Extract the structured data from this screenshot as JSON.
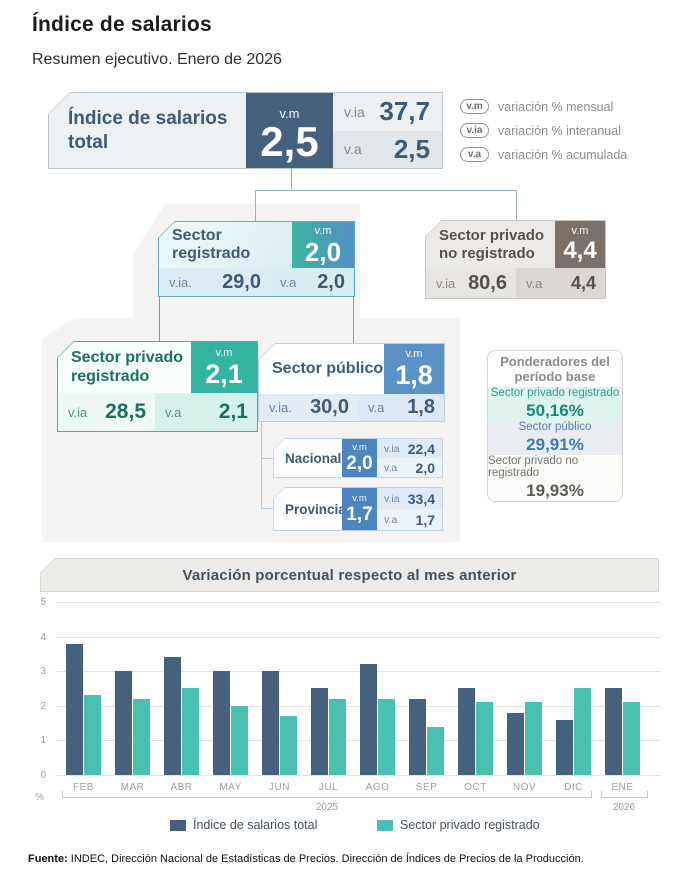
{
  "page": {
    "title": "Índice de salarios",
    "subtitle": "Resumen ejecutivo. Enero de 2026",
    "footer_label": "Fuente:",
    "footer_text": " INDEC, Dirección Nacional de Estadísticas de Precios. Dirección de Índices de Precios de la Producción."
  },
  "abbrev_legend": {
    "items": [
      {
        "badge": "v.m",
        "label": "variación % mensual"
      },
      {
        "badge": "v.ia",
        "label": "variación % interanual"
      },
      {
        "badge": "v.a",
        "label": "variación % acumulada"
      }
    ]
  },
  "total_box": {
    "title": "Índice de salarios total",
    "vm_label": "v.m",
    "vm": "2,5",
    "via_label": "v.ia",
    "via": "37,7",
    "va_label": "v.a",
    "va": "2,5"
  },
  "sector_registrado": {
    "title": "Sector registrado",
    "vm_label": "v.m",
    "vm": "2,0",
    "via_label": "v.ia.",
    "via": "29,0",
    "va_label": "v.a",
    "va": "2,0"
  },
  "sector_privado_no_registrado": {
    "title": "Sector privado no registrado",
    "vm_label": "v.m",
    "vm": "4,4",
    "via_label": "v.ia",
    "via": "80,6",
    "va_label": "v.a",
    "va": "4,4"
  },
  "sector_privado_registrado": {
    "title": "Sector privado registrado",
    "vm_label": "v.m",
    "vm": "2,1",
    "via_label": "v.ia",
    "via": "28,5",
    "va_label": "v.a",
    "va": "2,1"
  },
  "sector_publico": {
    "title": "Sector público",
    "vm_label": "v.m",
    "vm": "1,8",
    "via_label": "v.ia.",
    "via": "30,0",
    "va_label": "v.a",
    "va": "1,8",
    "children": [
      {
        "title": "Nacional",
        "vm_label": "v.m",
        "vm": "2,0",
        "via_label": "v.ia",
        "via": "22,4",
        "va_label": "v.a",
        "va": "2,0"
      },
      {
        "title": "Provincial",
        "vm_label": "v.m",
        "vm": "1,7",
        "via_label": "v.ia",
        "via": "33,4",
        "va_label": "v.a",
        "va": "1,7"
      }
    ]
  },
  "ponderadores": {
    "title": "Ponderadores del período base",
    "rows": [
      {
        "label": "Sector privado registrado",
        "value": "50,16%"
      },
      {
        "label": "Sector público",
        "value": "29,91%"
      },
      {
        "label": "Sector privado no registrado",
        "value": "19,93%"
      }
    ]
  },
  "chart_data": {
    "type": "bar",
    "title": "Variación porcentual respecto al mes anterior",
    "categories": [
      "FEB",
      "MAR",
      "ABR",
      "MAY",
      "JUN",
      "JUL",
      "AGO",
      "SEP",
      "OCT",
      "NOV",
      "DIC",
      "ENE"
    ],
    "series": [
      {
        "name": "Índice de salarios total",
        "color": "#46617d",
        "values": [
          3.8,
          3.0,
          3.4,
          3.0,
          3.0,
          2.5,
          3.2,
          2.2,
          2.5,
          1.8,
          1.6,
          2.5
        ]
      },
      {
        "name": "Sector privado registrado",
        "color": "#48c1b0",
        "values": [
          2.3,
          2.2,
          2.5,
          2.0,
          1.7,
          2.2,
          2.2,
          1.4,
          2.1,
          2.1,
          2.5,
          2.1
        ]
      }
    ],
    "ylabel": "%",
    "ylim": [
      0,
      5
    ],
    "yticks": [
      0,
      1,
      2,
      3,
      4,
      5
    ],
    "grid": true,
    "legend_position": "bottom",
    "year_groups": [
      {
        "label": "2025",
        "span": "FEB-DIC"
      },
      {
        "label": "2026",
        "span": "ENE"
      }
    ]
  },
  "colors": {
    "slate": "#46617d",
    "teal": "#38b2a0",
    "blue": "#5a92c6",
    "taupe": "#7b7168",
    "blob": "#f4f3f1"
  }
}
